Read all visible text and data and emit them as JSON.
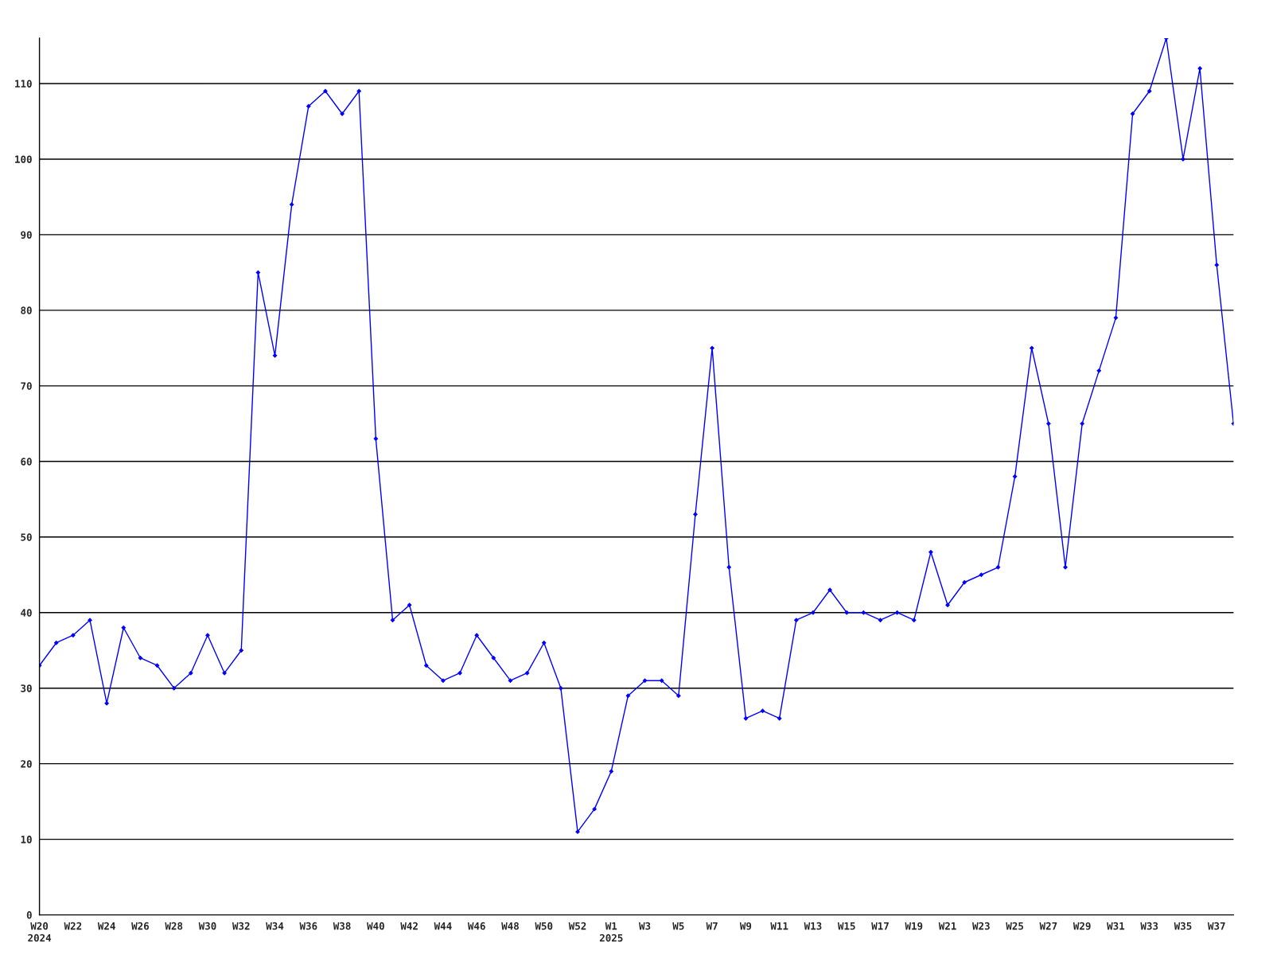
{
  "chart_data": {
    "type": "line",
    "categories": [
      "W20\n2024",
      null,
      "W22",
      null,
      "W24",
      null,
      "W26",
      null,
      "W28",
      null,
      "W30",
      null,
      "W32",
      null,
      "W34",
      null,
      "W36",
      null,
      "W38",
      null,
      "W40",
      null,
      "W42",
      null,
      "W44",
      null,
      "W46",
      null,
      "W48",
      null,
      "W50",
      null,
      "W52",
      null,
      "W1\n2025",
      null,
      "W3",
      null,
      "W5",
      null,
      "W7",
      null,
      "W9",
      null,
      "W11",
      null,
      "W13",
      null,
      "W15",
      null,
      "W17",
      null,
      "W19",
      null,
      "W21",
      null,
      "W23",
      null,
      "W25",
      null,
      "W27",
      null,
      "W29",
      null,
      "W31",
      null,
      "W33",
      null,
      "W35",
      null,
      "W37",
      null
    ],
    "series": [
      {
        "color": "#0000ff",
        "values": [
          33,
          36,
          37,
          39,
          28,
          38,
          34,
          33,
          30,
          32,
          37,
          32,
          35,
          85,
          74,
          94,
          107,
          109,
          106,
          109,
          63,
          39,
          41,
          33,
          31,
          32,
          37,
          34,
          31,
          32,
          36,
          30,
          11,
          14,
          19,
          29,
          31,
          31,
          29,
          53,
          75,
          46,
          26,
          27,
          26,
          39,
          40,
          43,
          40,
          40,
          39,
          40,
          39,
          48,
          41,
          44,
          45,
          46,
          58,
          75,
          65,
          46,
          65,
          72,
          79,
          106,
          109,
          116,
          100,
          112,
          86,
          65
        ]
      }
    ],
    "ylim": [
      0,
      116
    ],
    "yticks": [
      0,
      10,
      20,
      30,
      40,
      50,
      60,
      70,
      80,
      90,
      100,
      110
    ],
    "grid": "y",
    "marker": "diamond",
    "line_style": "solid"
  }
}
